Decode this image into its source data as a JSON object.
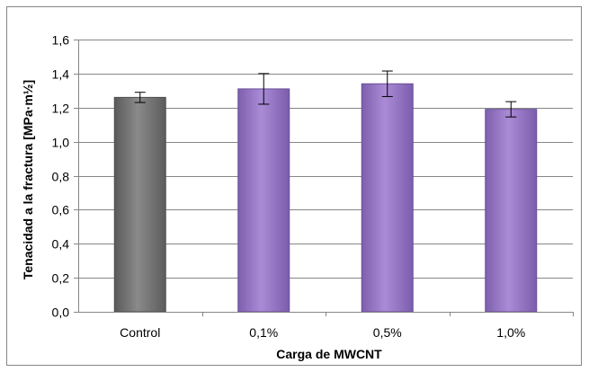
{
  "chart_data": {
    "type": "bar",
    "title": "",
    "xlabel": "Carga de MWCNT",
    "ylabel": "Tenacidad a la fractura [MPa·m½]",
    "categories": [
      "Control",
      "0,1%",
      "0,5%",
      "1,0%"
    ],
    "values": [
      1.26,
      1.31,
      1.34,
      1.19
    ],
    "error": [
      0.03,
      0.09,
      0.075,
      0.045
    ],
    "ylim": [
      0,
      1.6
    ],
    "yticks": [
      0.0,
      0.2,
      0.4,
      0.6,
      0.8,
      1.0,
      1.2,
      1.4,
      1.6
    ],
    "ytick_labels": [
      "0,0",
      "0,2",
      "0,4",
      "0,6",
      "0,8",
      "1,0",
      "1,2",
      "1,4",
      "1,6"
    ],
    "grid": true,
    "legend": "none",
    "colors": {
      "Control": "#767676",
      "0,1%": "#9779c4",
      "0,5%": "#9779c4",
      "1,0%": "#9779c4"
    }
  }
}
